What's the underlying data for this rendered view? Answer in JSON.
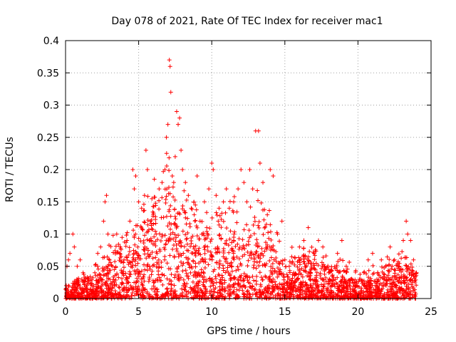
{
  "chart_data": {
    "type": "scatter",
    "title": "Day 078 of 2021, Rate Of TEC Index for receiver mac1",
    "xlabel": "GPS time / hours",
    "ylabel": "ROTI / TECUs",
    "xlim": [
      0,
      25
    ],
    "ylim": [
      0,
      0.4
    ],
    "x_ticks": [
      0,
      5,
      10,
      15,
      20,
      25
    ],
    "y_ticks": [
      0,
      0.05,
      0.1,
      0.15,
      0.2,
      0.25,
      0.3,
      0.35,
      0.4
    ],
    "x_tick_labels": [
      "0",
      "5",
      "10",
      "15",
      "20",
      "25"
    ],
    "y_tick_labels": [
      "0",
      "0.05",
      "0.1",
      "0.15",
      "0.2",
      "0.25",
      "0.3",
      "0.35",
      "0.4"
    ],
    "grid": true,
    "marker": "plus",
    "color": "#ff0000",
    "series": [
      {
        "points": [
          [
            0.05,
            0.02
          ],
          [
            0.1,
            0.05
          ],
          [
            0.2,
            0.06
          ],
          [
            0.3,
            0.07
          ],
          [
            0.5,
            0.1
          ],
          [
            0.6,
            0.08
          ],
          [
            0.8,
            0.05
          ],
          [
            1.0,
            0.06
          ],
          [
            1.2,
            0.04
          ],
          [
            1.5,
            0.03
          ],
          [
            1.8,
            0.02
          ],
          [
            2.0,
            0.04
          ],
          [
            2.2,
            0.07
          ],
          [
            2.4,
            0.08
          ],
          [
            2.6,
            0.12
          ],
          [
            2.7,
            0.15
          ],
          [
            2.8,
            0.16
          ],
          [
            2.9,
            0.1
          ],
          [
            3.0,
            0.06
          ],
          [
            3.2,
            0.05
          ],
          [
            3.5,
            0.1
          ],
          [
            3.7,
            0.07
          ],
          [
            4.0,
            0.06
          ],
          [
            4.2,
            0.09
          ],
          [
            4.4,
            0.12
          ],
          [
            4.6,
            0.2
          ],
          [
            4.7,
            0.17
          ],
          [
            4.8,
            0.19
          ],
          [
            5.0,
            0.15
          ],
          [
            5.2,
            0.14
          ],
          [
            5.4,
            0.16
          ],
          [
            5.5,
            0.23
          ],
          [
            5.6,
            0.2
          ],
          [
            5.8,
            0.12
          ],
          [
            6.0,
            0.13
          ],
          [
            6.2,
            0.1
          ],
          [
            6.4,
            0.17
          ],
          [
            6.6,
            0.18
          ],
          [
            6.8,
            0.2
          ],
          [
            6.9,
            0.25
          ],
          [
            7.0,
            0.27
          ],
          [
            7.1,
            0.37
          ],
          [
            7.15,
            0.36
          ],
          [
            7.2,
            0.32
          ],
          [
            7.3,
            0.19
          ],
          [
            7.4,
            0.18
          ],
          [
            7.5,
            0.22
          ],
          [
            7.6,
            0.29
          ],
          [
            7.7,
            0.27
          ],
          [
            7.8,
            0.28
          ],
          [
            7.9,
            0.23
          ],
          [
            8.0,
            0.2
          ],
          [
            8.2,
            0.18
          ],
          [
            8.4,
            0.16
          ],
          [
            8.6,
            0.14
          ],
          [
            8.8,
            0.13
          ],
          [
            9.0,
            0.19
          ],
          [
            9.2,
            0.12
          ],
          [
            9.5,
            0.15
          ],
          [
            9.8,
            0.17
          ],
          [
            10.0,
            0.21
          ],
          [
            10.1,
            0.2
          ],
          [
            10.3,
            0.16
          ],
          [
            10.5,
            0.14
          ],
          [
            10.8,
            0.15
          ],
          [
            11.0,
            0.17
          ],
          [
            11.2,
            0.14
          ],
          [
            11.5,
            0.15
          ],
          [
            11.8,
            0.17
          ],
          [
            12.0,
            0.2
          ],
          [
            12.2,
            0.18
          ],
          [
            12.4,
            0.15
          ],
          [
            12.6,
            0.2
          ],
          [
            12.8,
            0.17
          ],
          [
            13.0,
            0.26
          ],
          [
            13.2,
            0.26
          ],
          [
            13.3,
            0.21
          ],
          [
            13.5,
            0.18
          ],
          [
            13.8,
            0.13
          ],
          [
            14.0,
            0.2
          ],
          [
            14.2,
            0.19
          ],
          [
            14.5,
            0.1
          ],
          [
            14.8,
            0.12
          ],
          [
            15.0,
            0.06
          ],
          [
            15.3,
            0.05
          ],
          [
            15.6,
            0.04
          ],
          [
            16.0,
            0.08
          ],
          [
            16.3,
            0.09
          ],
          [
            16.6,
            0.11
          ],
          [
            17.0,
            0.07
          ],
          [
            17.3,
            0.09
          ],
          [
            17.6,
            0.08
          ],
          [
            18.0,
            0.04
          ],
          [
            18.3,
            0.03
          ],
          [
            18.6,
            0.07
          ],
          [
            18.9,
            0.09
          ],
          [
            19.2,
            0.05
          ],
          [
            19.5,
            0.03
          ],
          [
            19.8,
            0.02
          ],
          [
            20.1,
            0.03
          ],
          [
            20.4,
            0.04
          ],
          [
            20.7,
            0.06
          ],
          [
            21.0,
            0.07
          ],
          [
            21.3,
            0.03
          ],
          [
            21.6,
            0.06
          ],
          [
            21.9,
            0.05
          ],
          [
            22.2,
            0.08
          ],
          [
            22.5,
            0.06
          ],
          [
            22.8,
            0.05
          ],
          [
            23.1,
            0.09
          ],
          [
            23.3,
            0.12
          ],
          [
            23.4,
            0.1
          ],
          [
            23.6,
            0.09
          ],
          [
            23.8,
            0.06
          ],
          [
            24.0,
            0.04
          ]
        ]
      }
    ],
    "dense_band": {
      "x_start": 0,
      "x_end": 24,
      "density_levels": [
        {
          "x": 0.0,
          "amp": 0.02
        },
        {
          "x": 1.0,
          "amp": 0.03
        },
        {
          "x": 2.0,
          "amp": 0.04
        },
        {
          "x": 3.0,
          "amp": 0.07
        },
        {
          "x": 4.0,
          "amp": 0.08
        },
        {
          "x": 5.0,
          "amp": 0.12
        },
        {
          "x": 6.0,
          "amp": 0.14
        },
        {
          "x": 7.0,
          "amp": 0.17
        },
        {
          "x": 8.0,
          "amp": 0.15
        },
        {
          "x": 9.0,
          "amp": 0.12
        },
        {
          "x": 10.0,
          "amp": 0.11
        },
        {
          "x": 11.0,
          "amp": 0.12
        },
        {
          "x": 12.0,
          "amp": 0.12
        },
        {
          "x": 13.0,
          "amp": 0.13
        },
        {
          "x": 14.0,
          "amp": 0.11
        },
        {
          "x": 15.0,
          "amp": 0.05
        },
        {
          "x": 16.0,
          "amp": 0.07
        },
        {
          "x": 17.0,
          "amp": 0.06
        },
        {
          "x": 18.0,
          "amp": 0.05
        },
        {
          "x": 19.0,
          "amp": 0.05
        },
        {
          "x": 20.0,
          "amp": 0.03
        },
        {
          "x": 21.0,
          "amp": 0.04
        },
        {
          "x": 22.0,
          "amp": 0.05
        },
        {
          "x": 23.0,
          "amp": 0.06
        },
        {
          "x": 24.0,
          "amp": 0.04
        }
      ]
    }
  }
}
